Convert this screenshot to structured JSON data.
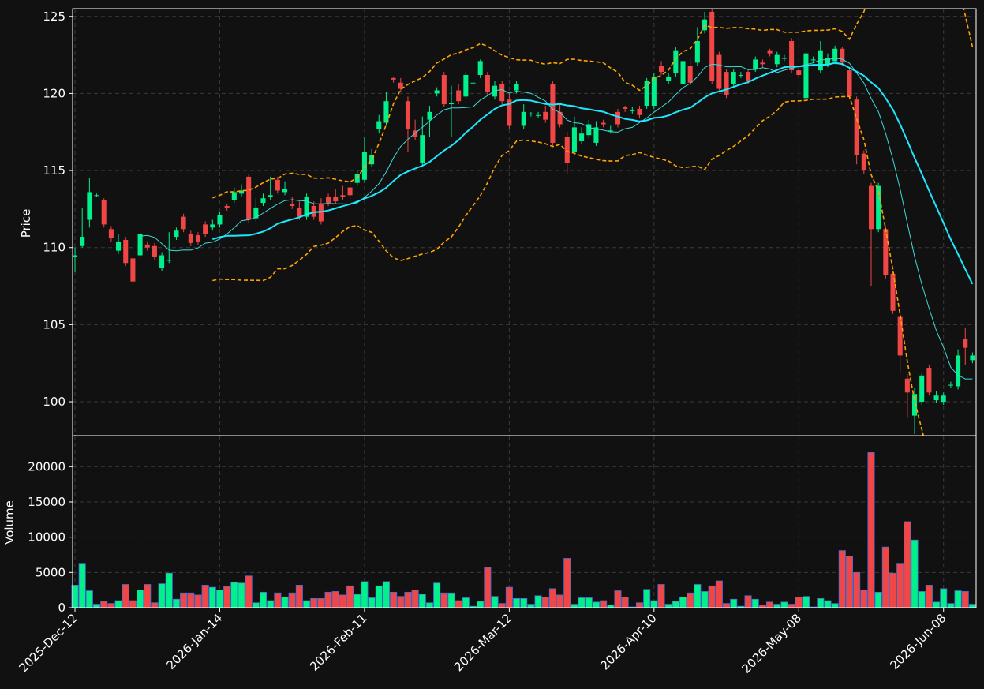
{
  "chart_data": [
    {
      "type": "candlestick",
      "ylabel": "Price",
      "categories": [
        "2025-Dec-12",
        null,
        null,
        null,
        null,
        null,
        null,
        null,
        null,
        null,
        null,
        null,
        null,
        null,
        null,
        null,
        null,
        null,
        null,
        null,
        "2026-Jan-14",
        null,
        null,
        null,
        null,
        null,
        null,
        null,
        null,
        null,
        null,
        null,
        null,
        null,
        null,
        null,
        null,
        null,
        null,
        null,
        "2026-Feb-11",
        null,
        null,
        null,
        null,
        null,
        null,
        null,
        null,
        null,
        null,
        null,
        null,
        null,
        null,
        null,
        null,
        null,
        null,
        null,
        "2026-Mar-12",
        null,
        null,
        null,
        null,
        null,
        null,
        null,
        null,
        null,
        null,
        null,
        null,
        null,
        null,
        null,
        null,
        null,
        null,
        null,
        "2026-Apr-10",
        null,
        null,
        null,
        null,
        null,
        null,
        null,
        null,
        null,
        null,
        null,
        null,
        null,
        null,
        null,
        null,
        null,
        null,
        null,
        "2026-May-08",
        null,
        null,
        null,
        null,
        null,
        null,
        null,
        null,
        null,
        null,
        null,
        null,
        null,
        null,
        null,
        null,
        null,
        null,
        null,
        "2026-Jun-08",
        null,
        null,
        null,
        null
      ],
      "open": [
        109.4,
        110.1,
        111.8,
        113.4,
        113.1,
        111.2,
        109.8,
        110.5,
        109.3,
        109.5,
        110.2,
        110.1,
        108.7,
        109.2,
        110.7,
        112.0,
        110.9,
        110.8,
        111.5,
        111.3,
        111.5,
        112.7,
        113.1,
        113.5,
        114.6,
        111.9,
        112.9,
        113.3,
        114.4,
        113.6,
        112.8,
        112.6,
        112.0,
        112.7,
        112.8,
        113.3,
        113.3,
        113.4,
        113.9,
        114.2,
        114.4,
        115.4,
        117.7,
        118.1,
        121.0,
        120.7,
        119.5,
        117.6,
        115.5,
        118.3,
        120.0,
        121.2,
        119.3,
        120.2,
        119.8,
        120.7,
        121.2,
        121.2,
        119.8,
        120.6,
        119.6,
        120.2,
        117.9,
        118.7,
        118.6,
        118.8,
        120.6,
        118.8,
        117.2,
        116.2,
        116.9,
        117.3,
        116.8,
        118.1,
        117.6,
        118.8,
        119.1,
        118.9,
        119.0,
        119.2,
        119.2,
        121.8,
        120.8,
        121.3,
        120.6,
        121.8,
        122.0,
        124.1,
        125.3,
        122.5,
        121.4,
        120.6,
        121.2,
        121.4,
        121.6,
        122.0,
        122.8,
        121.9,
        122.3,
        123.4,
        121.5,
        119.7,
        122.2,
        121.5,
        121.9,
        122.1,
        122.9,
        121.5,
        119.6,
        116.1,
        114.0,
        111.2,
        111.2,
        108.3,
        105.5,
        101.5,
        99.1,
        100.0,
        102.2,
        100.1,
        100.0,
        101.1,
        101.0,
        104.1,
        102.7
      ],
      "high": [
        110.0,
        112.6,
        114.5,
        113.5,
        113.2,
        111.4,
        110.9,
        110.7,
        109.4,
        111.0,
        110.4,
        110.3,
        109.7,
        111.0,
        111.3,
        112.2,
        111.1,
        111.0,
        111.7,
        111.8,
        112.3,
        112.8,
        113.9,
        114.1,
        114.8,
        113.2,
        113.5,
        114.6,
        114.6,
        114.3,
        113.3,
        113.0,
        113.5,
        113.0,
        113.2,
        113.5,
        113.8,
        114.0,
        114.4,
        115.0,
        117.2,
        116.4,
        118.6,
        120.1,
        121.1,
        121.0,
        119.8,
        118.3,
        118.5,
        119.2,
        120.4,
        121.4,
        120.5,
        120.6,
        121.4,
        121.1,
        122.2,
        121.4,
        120.8,
        120.8,
        120.0,
        120.8,
        119.3,
        118.8,
        118.8,
        119.2,
        120.8,
        119.3,
        117.5,
        118.5,
        117.8,
        118.3,
        118.2,
        118.3,
        117.9,
        119.0,
        119.2,
        119.1,
        119.2,
        121.0,
        121.3,
        122.1,
        121.3,
        123.0,
        122.3,
        122.3,
        124.3,
        125.3,
        125.5,
        122.7,
        121.6,
        121.6,
        121.4,
        121.6,
        122.4,
        122.2,
        122.9,
        122.7,
        122.5,
        123.6,
        121.8,
        122.8,
        122.4,
        123.4,
        122.6,
        123.1,
        123.0,
        121.7,
        119.8,
        116.3,
        114.2,
        114.2,
        111.4,
        108.5,
        105.8,
        101.8,
        100.9,
        101.9,
        102.4,
        100.7,
        100.6,
        101.3,
        103.4,
        104.8,
        103.2
      ],
      "low": [
        108.4,
        110.0,
        111.3,
        113.3,
        111.3,
        110.4,
        109.6,
        108.8,
        107.6,
        109.3,
        109.8,
        109.2,
        108.5,
        109.0,
        110.5,
        111.0,
        110.1,
        110.2,
        110.7,
        111.1,
        111.3,
        112.4,
        112.9,
        113.3,
        111.6,
        111.7,
        112.7,
        113.1,
        113.5,
        113.4,
        112.5,
        111.8,
        111.8,
        111.8,
        111.5,
        112.7,
        112.8,
        113.1,
        113.2,
        114.0,
        114.2,
        115.2,
        117.4,
        117.9,
        120.7,
        120.1,
        116.2,
        117.0,
        115.3,
        117.2,
        119.8,
        119.1,
        117.2,
        119.3,
        119.6,
        120.5,
        121.0,
        119.9,
        119.6,
        119.3,
        117.7,
        120.0,
        117.7,
        118.5,
        118.4,
        118.1,
        116.6,
        117.8,
        114.8,
        116.0,
        116.7,
        117.1,
        116.6,
        117.8,
        117.4,
        117.8,
        118.8,
        118.7,
        118.4,
        119.0,
        119.0,
        121.2,
        120.6,
        121.1,
        120.4,
        120.5,
        121.8,
        123.9,
        120.6,
        120.1,
        119.7,
        120.4,
        121.0,
        120.6,
        121.4,
        121.7,
        122.4,
        121.7,
        122.1,
        121.3,
        121.0,
        119.5,
        122.0,
        121.3,
        121.7,
        121.9,
        121.8,
        119.6,
        115.4,
        114.8,
        107.5,
        111.0,
        108.0,
        105.7,
        101.9,
        99.0,
        97.9,
        99.8,
        100.4,
        99.9,
        99.8,
        100.9,
        100.8,
        102.4,
        102.5
      ],
      "close": [
        109.5,
        110.7,
        113.6,
        113.4,
        111.5,
        110.6,
        110.4,
        109.0,
        107.8,
        110.9,
        110.0,
        109.4,
        109.5,
        109.2,
        111.1,
        111.2,
        110.3,
        110.4,
        110.9,
        111.5,
        112.1,
        112.6,
        113.6,
        113.7,
        111.8,
        112.6,
        113.2,
        113.4,
        113.7,
        113.8,
        112.7,
        112.0,
        113.3,
        112.0,
        111.7,
        112.9,
        113.0,
        113.3,
        113.4,
        114.8,
        116.2,
        116.0,
        118.2,
        119.5,
        120.9,
        120.3,
        117.7,
        117.2,
        117.3,
        118.8,
        120.2,
        119.3,
        119.4,
        119.5,
        121.2,
        120.7,
        122.1,
        120.1,
        120.5,
        119.5,
        117.9,
        120.6,
        118.8,
        118.7,
        118.6,
        118.3,
        116.8,
        118.0,
        115.5,
        117.8,
        117.4,
        118.0,
        117.8,
        118.0,
        117.6,
        118.0,
        119.0,
        118.9,
        118.6,
        120.8,
        121.1,
        121.4,
        121.1,
        122.8,
        122.1,
        120.7,
        123.4,
        124.8,
        120.8,
        120.3,
        119.9,
        121.4,
        121.2,
        120.8,
        122.2,
        121.9,
        122.6,
        122.5,
        122.3,
        121.5,
        121.2,
        122.6,
        122.2,
        122.8,
        122.3,
        122.9,
        122.0,
        119.8,
        116.0,
        115.0,
        111.2,
        114.0,
        108.2,
        105.9,
        103.0,
        100.6,
        100.5,
        101.7,
        100.6,
        100.4,
        100.4,
        101.1,
        103.0,
        103.5,
        103.0
      ],
      "up_color": "#00f08c",
      "down_color": "#f04646",
      "moving_averages": [
        {
          "period": 10,
          "color": "#3fd9d9",
          "width": 1
        },
        {
          "period": 20,
          "color": "#1ee8ff",
          "width": 2
        }
      ],
      "bollinger": {
        "period": 20,
        "k": 2,
        "color": "#ffa500"
      },
      "xlim": [
        -0.33,
        124.5
      ],
      "ylim": [
        97.8,
        125.5
      ],
      "yticks": [
        100,
        105,
        110,
        115,
        120,
        125
      ],
      "grid": true
    },
    {
      "type": "bar",
      "ylabel": "Volume",
      "values": [
        3200,
        6300,
        2400,
        500,
        900,
        600,
        1000,
        3300,
        1000,
        2500,
        3300,
        700,
        3400,
        4900,
        1200,
        2100,
        2100,
        1800,
        3200,
        2900,
        2500,
        3000,
        3600,
        3500,
        4500,
        700,
        2200,
        1000,
        2100,
        1500,
        2100,
        3200,
        1000,
        1300,
        1300,
        2200,
        2300,
        1800,
        3100,
        1900,
        3700,
        1400,
        3100,
        3700,
        2200,
        1600,
        2200,
        2500,
        1900,
        700,
        3500,
        2100,
        2100,
        1000,
        1400,
        200,
        900,
        5700,
        1600,
        600,
        2900,
        1300,
        1300,
        500,
        1700,
        1500,
        2700,
        1800,
        7000,
        500,
        1400,
        1400,
        800,
        1000,
        400,
        2400,
        1500,
        100,
        700,
        2600,
        1000,
        3300,
        500,
        900,
        1500,
        2100,
        3300,
        2300,
        3100,
        3800,
        600,
        1200,
        200,
        1700,
        1200,
        400,
        800,
        500,
        800,
        500,
        1500,
        1600,
        100,
        1300,
        1000,
        600,
        8100,
        7300,
        5000,
        2500,
        22000,
        2200,
        8600,
        4900,
        6300,
        12200,
        9600,
        2300,
        3200,
        800,
        2700,
        600,
        2400,
        2300,
        500
      ],
      "edge_color": "#4a6cd4",
      "ylim": [
        0,
        24400
      ],
      "yticks": [
        0,
        5000,
        10000,
        15000,
        20000
      ],
      "grid": true
    }
  ]
}
